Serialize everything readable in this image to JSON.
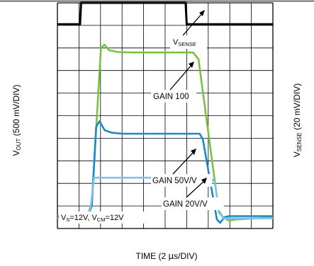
{
  "chart_data": {
    "type": "line",
    "xlabel_main": "TIME (2 ",
    "xlabel_mu": "µ",
    "xlabel_rest": "s/DIV)",
    "ylabel_left_main": "V",
    "ylabel_left_sub": "OUT",
    "ylabel_left_rest": " (500 mV/DIV)",
    "ylabel_right_main": "V",
    "ylabel_right_sub": "SENSE",
    "ylabel_right_rest": " (20 mV/DIV)",
    "grid": true,
    "divisions": {
      "x": 10,
      "y": 10
    },
    "x_units": "div",
    "y_units": "div",
    "xlim": [
      0,
      10
    ],
    "ylim": [
      0,
      10
    ],
    "series": [
      {
        "name": "VSENSE",
        "color": "#000000",
        "x": [
          0,
          1.05,
          1.1,
          5.95,
          6.0,
          10
        ],
        "y": [
          9.05,
          9.05,
          10.0,
          10.0,
          9.05,
          9.05
        ]
      },
      {
        "name": "GAIN 100",
        "color": "#7ac143",
        "x": [
          0,
          1.4,
          1.6,
          2.02,
          2.18,
          2.4,
          2.8,
          3.5,
          5.0,
          6.3,
          6.55,
          7.5,
          7.7,
          7.95,
          8.3,
          10
        ],
        "y": [
          0.55,
          0.55,
          1.2,
          8.0,
          8.15,
          7.9,
          7.82,
          7.8,
          7.8,
          7.8,
          7.5,
          0.7,
          0.5,
          0.35,
          0.4,
          0.5
        ]
      },
      {
        "name": "GAIN 50V/V",
        "color": "#1a88c9",
        "x": [
          0,
          1.4,
          1.6,
          1.8,
          1.95,
          2.2,
          2.5,
          3.0,
          5.0,
          6.6,
          6.75,
          7.4,
          7.55,
          7.75,
          7.95,
          10
        ],
        "y": [
          0.5,
          0.5,
          1.0,
          4.5,
          4.75,
          4.35,
          4.25,
          4.2,
          4.2,
          4.2,
          3.95,
          0.4,
          0.25,
          0.5,
          0.55,
          0.55
        ]
      },
      {
        "name": "GAIN 20V/V",
        "color": "#7fc2e6",
        "x": [
          0,
          1.4,
          1.55,
          1.7,
          2.0,
          3.0,
          5.0,
          7.1,
          7.3,
          7.5,
          7.7,
          10
        ],
        "y": [
          0.45,
          0.45,
          1.0,
          2.25,
          2.25,
          2.25,
          2.25,
          2.25,
          2.05,
          0.8,
          0.45,
          0.45
        ]
      }
    ],
    "annotations": [
      {
        "main": "V",
        "sub": "SENSE",
        "rest": ""
      },
      {
        "main": "GAIN 100",
        "sub": "",
        "rest": ""
      },
      {
        "main": "GAIN 50V/V",
        "sub": "",
        "rest": ""
      },
      {
        "main": "GAIN 20V/V",
        "sub": "",
        "rest": ""
      }
    ],
    "condition": {
      "p1": "V",
      "s1": "S",
      "p2": "=12V, V",
      "s2": "CM",
      "p3": "=12V"
    }
  }
}
